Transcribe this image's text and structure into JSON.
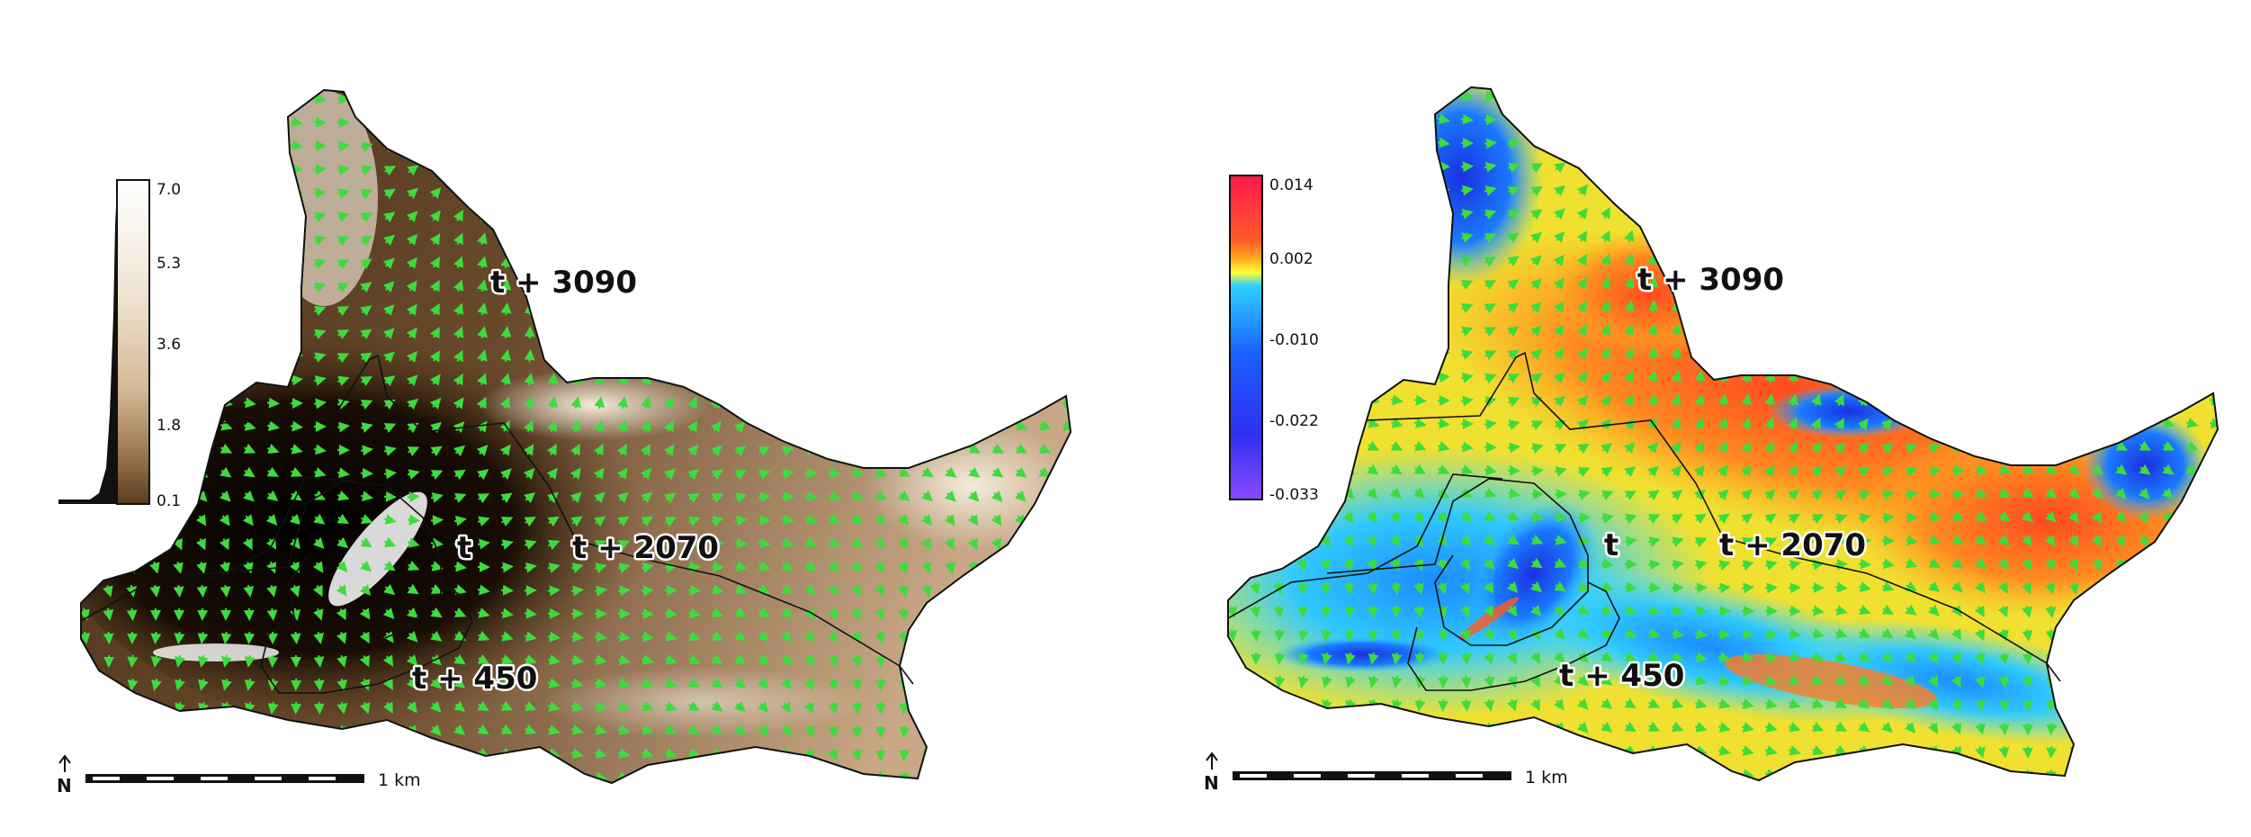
{
  "panels": [
    {
      "id": "left",
      "field": "magnitude",
      "colorbar": {
        "ticks": [
          "7.0",
          "5.3",
          "3.6",
          "1.8",
          "0.1"
        ],
        "colors": [
          "#ffffff",
          "#f2e8d8",
          "#d8c0a0",
          "#a07850",
          "#5a3c1c",
          "#000000"
        ]
      },
      "contour_labels": {
        "t3090": "t + 3090",
        "t2070": "t + 2070",
        "t": "t",
        "t450": "t + 450"
      },
      "scale_label": "1 km",
      "north_label": "N"
    },
    {
      "id": "right",
      "field": "change",
      "colorbar": {
        "ticks": [
          "0.014",
          "0.002",
          "-0.010",
          "-0.022",
          "-0.033"
        ],
        "colors": [
          "#ff1a4a",
          "#ff7a1a",
          "#ffff30",
          "#1aa0ff",
          "#1a3cff",
          "#8a4aff"
        ]
      },
      "contour_labels": {
        "t3090": "t + 3090",
        "t2070": "t + 2070",
        "t": "t",
        "t450": "t + 450"
      },
      "scale_label": "1 km",
      "north_label": "N"
    }
  ],
  "arrow_color": "#3ddc3d",
  "contour_color": "#111111"
}
